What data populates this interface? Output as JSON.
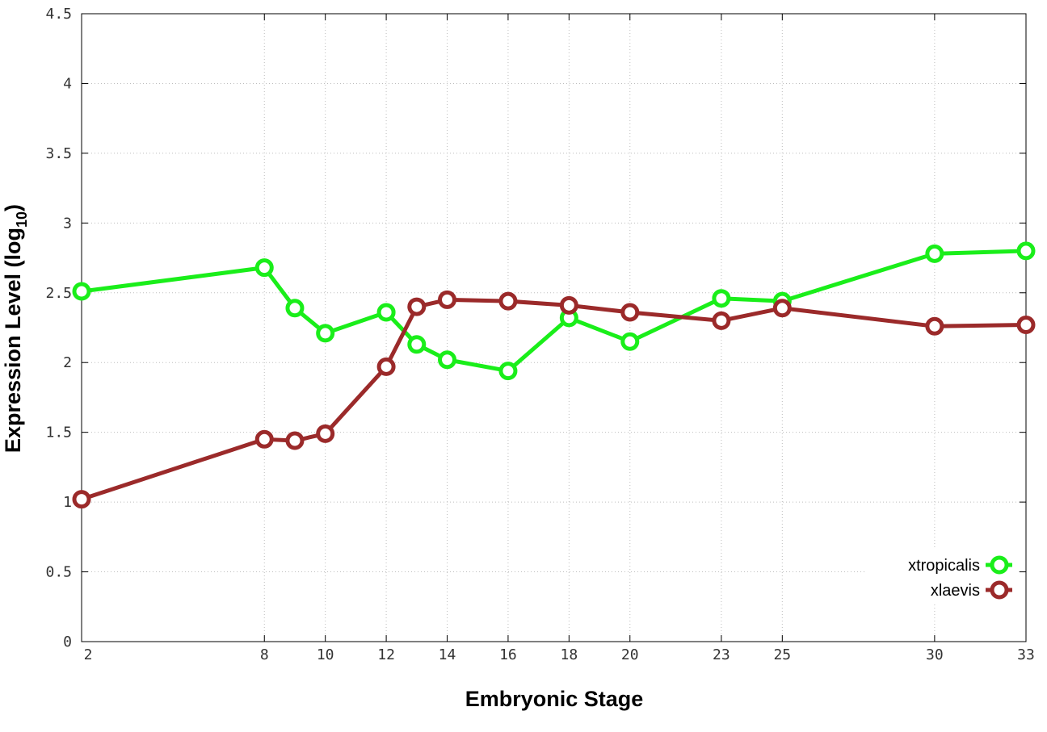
{
  "chart_data": {
    "type": "line",
    "xlabel": "Embryonic Stage",
    "ylabel": "Expression Level (log",
    "ylabel_sub": "10",
    "ylabel_suffix": ")",
    "xlim": [
      2,
      33
    ],
    "ylim": [
      0,
      4.5
    ],
    "x_ticks": [
      2,
      8,
      10,
      12,
      14,
      16,
      18,
      20,
      23,
      25,
      30,
      33
    ],
    "y_ticks": [
      0,
      0.5,
      1,
      1.5,
      2,
      2.5,
      3,
      3.5,
      4,
      4.5
    ],
    "y_tick_labels": [
      "0",
      "0.5",
      "1",
      "1.5",
      "2",
      "2.5",
      "3",
      "3.5",
      "4",
      "4.5"
    ],
    "grid": true,
    "legend_position": "bottom-right",
    "series": [
      {
        "name": "xtropicalis",
        "color": "#1aee1a",
        "x": [
          2,
          8,
          9,
          10,
          12,
          13,
          14,
          16,
          18,
          20,
          23,
          25,
          30,
          33
        ],
        "y": [
          2.51,
          2.68,
          2.39,
          2.21,
          2.36,
          2.13,
          2.02,
          1.94,
          2.32,
          2.15,
          2.46,
          2.44,
          2.78,
          2.8
        ]
      },
      {
        "name": "xlaevis",
        "color": "#9b2a2a",
        "x": [
          2,
          8,
          9,
          10,
          12,
          13,
          14,
          16,
          18,
          20,
          23,
          25,
          30,
          33
        ],
        "y": [
          1.02,
          1.45,
          1.44,
          1.49,
          1.97,
          2.4,
          2.45,
          2.44,
          2.41,
          2.36,
          2.3,
          2.39,
          2.26,
          2.27
        ]
      }
    ]
  }
}
